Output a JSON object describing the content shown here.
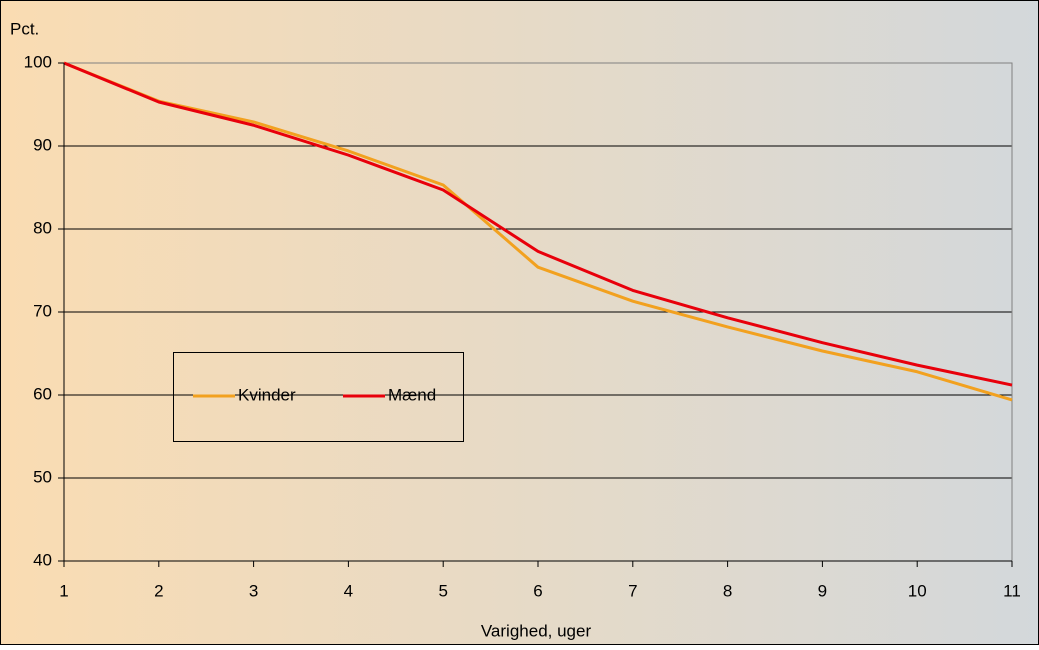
{
  "chart_data": {
    "type": "line",
    "y_axis_label": "Pct.",
    "x_axis_label": "Varighed, uger",
    "x": [
      1,
      2,
      3,
      4,
      5,
      6,
      7,
      8,
      9,
      10,
      11
    ],
    "series": [
      {
        "name": "Kvinder",
        "color": "#f2a11f",
        "values": [
          100,
          95.4,
          92.9,
          89.4,
          85.3,
          75.4,
          71.3,
          68.2,
          65.3,
          62.8,
          59.4
        ]
      },
      {
        "name": "Mænd",
        "color": "#e8000b",
        "values": [
          100,
          95.3,
          92.5,
          88.9,
          84.7,
          77.3,
          72.6,
          69.3,
          66.3,
          63.6,
          61.2
        ]
      }
    ],
    "xlim": [
      1,
      11
    ],
    "xticks": [
      1,
      2,
      3,
      4,
      5,
      6,
      7,
      8,
      9,
      10,
      11
    ],
    "ylim": [
      40,
      100
    ],
    "yticks": [
      40,
      50,
      60,
      70,
      80,
      90,
      100
    ],
    "grid": true
  }
}
